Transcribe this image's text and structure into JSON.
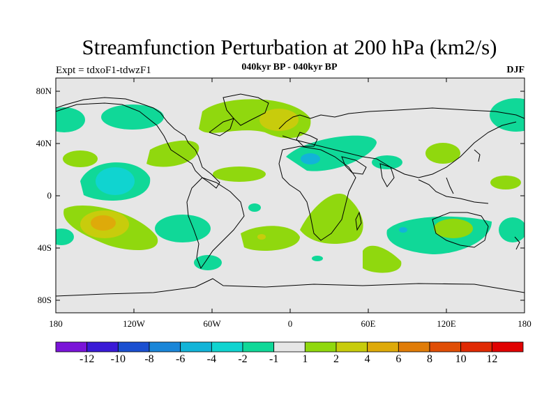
{
  "title": "Streamfunction Perturbation at 200 hPa (km2/s)",
  "expt_label": "Expt = tdxoF1-tdwzF1",
  "subtitle": "040kyr BP - 040kyr BP",
  "season": "DJF",
  "y_axis_labels": [
    "80N",
    "40N",
    "0",
    "40S",
    "80S"
  ],
  "x_axis_labels": [
    "180",
    "120W",
    "60W",
    "0",
    "60E",
    "120E",
    "180"
  ],
  "colorbar": {
    "colors": [
      "#7a14d8",
      "#3a1ad6",
      "#1a4fd0",
      "#1a86d8",
      "#12b4d8",
      "#10d4d0",
      "#10d898",
      "#e6e6e6",
      "#90d80e",
      "#c8cc0c",
      "#deaa0a",
      "#e07c08",
      "#e04e06",
      "#e02a04",
      "#e00202"
    ],
    "labels": [
      "-12",
      "-10",
      "-8",
      "-6",
      "-4",
      "-2",
      "-1",
      "1",
      "2",
      "4",
      "6",
      "8",
      "10",
      "12"
    ]
  },
  "colors": {
    "ocean_neutral": "#e6e6e6",
    "coast": "#000000"
  }
}
